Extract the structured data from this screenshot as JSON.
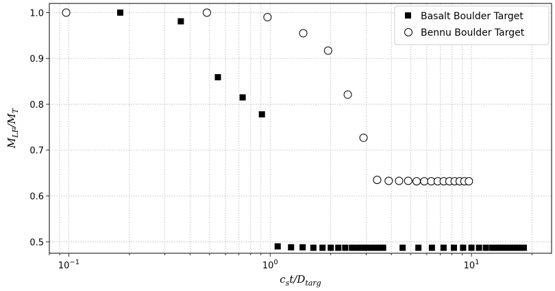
{
  "chart_data": {
    "type": "scatter",
    "title": "",
    "xlabel": {
      "base": "c",
      "sub1": "s",
      "mid": "t/D",
      "sub2": "targ"
    },
    "ylabel": {
      "base": "M",
      "sub1": "LF",
      "mid": "/M",
      "sub2": "T"
    },
    "x_scale": "log",
    "xlim": [
      0.08,
      25
    ],
    "ylim": [
      0.475,
      1.02
    ],
    "x_major_ticks": [
      {
        "value": 0.1,
        "base": "10",
        "exp": "−1"
      },
      {
        "value": 1,
        "base": "10",
        "exp": "0"
      },
      {
        "value": 10,
        "base": "10",
        "exp": "1"
      }
    ],
    "y_ticks": [
      {
        "value": 0.5,
        "label": "0.5"
      },
      {
        "value": 0.6,
        "label": "0.6"
      },
      {
        "value": 0.7,
        "label": "0.7"
      },
      {
        "value": 0.8,
        "label": "0.8"
      },
      {
        "value": 0.9,
        "label": "0.9"
      },
      {
        "value": 1.0,
        "label": "1.0"
      }
    ],
    "grid": true,
    "legend_position": "top-right",
    "series": [
      {
        "name": "Basalt Boulder Target",
        "marker": "square",
        "color": "#000000",
        "points": [
          [
            0.18,
            1.0
          ],
          [
            0.36,
            0.981
          ],
          [
            0.55,
            0.859
          ],
          [
            0.73,
            0.815
          ],
          [
            0.91,
            0.778
          ],
          [
            1.09,
            0.49
          ],
          [
            1.27,
            0.488
          ],
          [
            1.45,
            0.488
          ],
          [
            1.64,
            0.487
          ],
          [
            1.82,
            0.487
          ],
          [
            2.0,
            0.487
          ],
          [
            2.18,
            0.487
          ],
          [
            2.36,
            0.487
          ],
          [
            2.55,
            0.487
          ],
          [
            2.64,
            0.487
          ],
          [
            2.73,
            0.487
          ],
          [
            2.82,
            0.487
          ],
          [
            2.91,
            0.487
          ],
          [
            3.0,
            0.487
          ],
          [
            3.09,
            0.487
          ],
          [
            3.18,
            0.487
          ],
          [
            3.27,
            0.487
          ],
          [
            3.36,
            0.487
          ],
          [
            3.45,
            0.487
          ],
          [
            3.55,
            0.487
          ],
          [
            3.64,
            0.487
          ],
          [
            4.55,
            0.487
          ],
          [
            5.45,
            0.487
          ],
          [
            6.36,
            0.487
          ],
          [
            7.27,
            0.487
          ],
          [
            8.18,
            0.487
          ],
          [
            9.09,
            0.487
          ],
          [
            10.0,
            0.487
          ],
          [
            10.9,
            0.487
          ],
          [
            11.8,
            0.487
          ],
          [
            12.7,
            0.487
          ],
          [
            13.2,
            0.487
          ],
          [
            13.6,
            0.487
          ],
          [
            14.1,
            0.487
          ],
          [
            14.5,
            0.487
          ],
          [
            15.0,
            0.487
          ],
          [
            15.5,
            0.487
          ],
          [
            15.9,
            0.487
          ],
          [
            16.4,
            0.487
          ],
          [
            16.8,
            0.487
          ],
          [
            17.3,
            0.487
          ],
          [
            17.7,
            0.487
          ],
          [
            18.2,
            0.487
          ]
        ]
      },
      {
        "name": "Bennu Boulder Target",
        "marker": "circle",
        "color": "#000000",
        "points": [
          [
            0.097,
            1.0
          ],
          [
            0.485,
            1.0
          ],
          [
            0.97,
            0.99
          ],
          [
            1.46,
            0.955
          ],
          [
            1.94,
            0.917
          ],
          [
            2.43,
            0.821
          ],
          [
            2.91,
            0.727
          ],
          [
            3.4,
            0.635
          ],
          [
            3.88,
            0.633
          ],
          [
            4.37,
            0.633
          ],
          [
            4.85,
            0.633
          ],
          [
            5.34,
            0.632
          ],
          [
            5.83,
            0.632
          ],
          [
            6.31,
            0.632
          ],
          [
            6.8,
            0.632
          ],
          [
            7.28,
            0.632
          ],
          [
            7.77,
            0.632
          ],
          [
            8.25,
            0.632
          ],
          [
            8.74,
            0.632
          ],
          [
            9.22,
            0.632
          ],
          [
            9.71,
            0.632
          ]
        ]
      }
    ]
  }
}
